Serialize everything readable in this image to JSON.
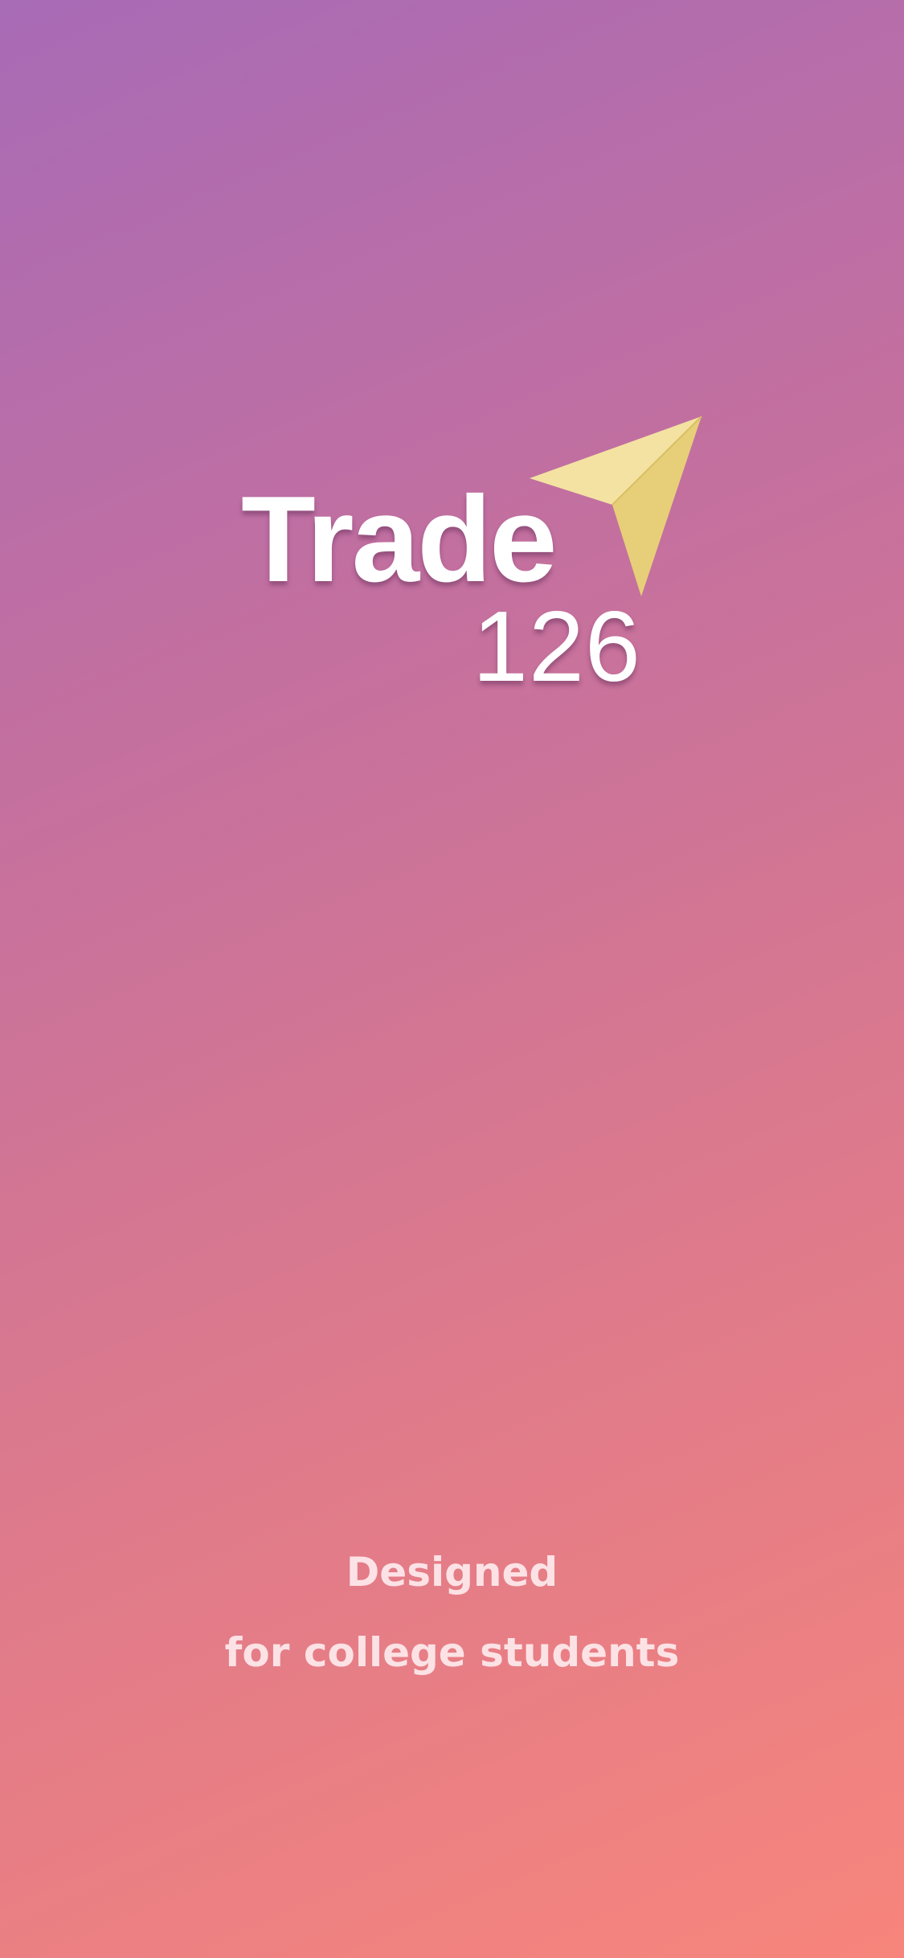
{
  "splash": {
    "brand": {
      "word": "Trade",
      "number": "126",
      "icon": "paper-plane-icon",
      "icon_colors": {
        "light": "#f3e2a2",
        "dark": "#e6cf78",
        "edge": "#d9bf62"
      }
    },
    "tagline": {
      "line1": "Designed",
      "line2": "for college students"
    },
    "background": {
      "gradient_start": "#a86bb6",
      "gradient_end": "#f7857c"
    }
  }
}
